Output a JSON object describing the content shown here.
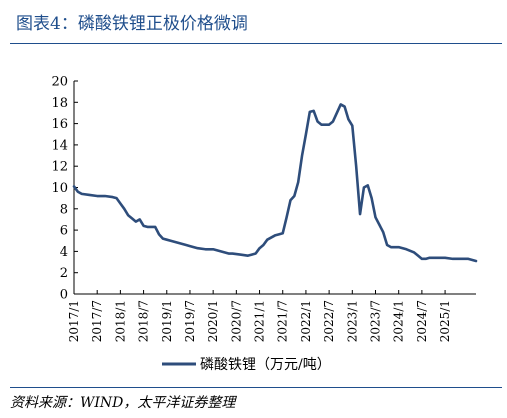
{
  "header": {
    "title": "图表4：磷酸铁锂正极价格微调"
  },
  "footer": {
    "source": "资料来源：WIND，太平洋证券整理"
  },
  "chart_data": {
    "type": "line",
    "title": "图表4：磷酸铁锂正极价格微调",
    "xlabel": "",
    "ylabel": "",
    "ylim": [
      0,
      20
    ],
    "yticks": [
      0,
      2,
      4,
      6,
      8,
      10,
      12,
      14,
      16,
      18,
      20
    ],
    "xlim": [
      "2017-01",
      "2025-09"
    ],
    "xticks": [
      "2017/1",
      "2017/7",
      "2018/1",
      "2018/7",
      "2019/1",
      "2019/7",
      "2020/1",
      "2020/7",
      "2021/1",
      "2021/7",
      "2022/1",
      "2022/7",
      "2023/1",
      "2023/7",
      "2024/1",
      "2024/7",
      "2025/1"
    ],
    "grid": false,
    "legend": "bottom",
    "line_color": "#2e4d7b",
    "series": [
      {
        "name": "磷酸铁锂（万元/吨）",
        "x": [
          "2017-01",
          "2017-02",
          "2017-03",
          "2017-05",
          "2017-07",
          "2017-09",
          "2017-11",
          "2017-12",
          "2018-01",
          "2018-02",
          "2018-03",
          "2018-04",
          "2018-05",
          "2018-06",
          "2018-07",
          "2018-08",
          "2018-09",
          "2018-10",
          "2018-11",
          "2018-12",
          "2019-01",
          "2019-02",
          "2019-04",
          "2019-06",
          "2019-07",
          "2019-09",
          "2019-11",
          "2020-01",
          "2020-03",
          "2020-05",
          "2020-06",
          "2020-08",
          "2020-10",
          "2020-11",
          "2020-12",
          "2021-01",
          "2021-02",
          "2021-03",
          "2021-04",
          "2021-05",
          "2021-06",
          "2021-07",
          "2021-08",
          "2021-09",
          "2021-10",
          "2021-11",
          "2021-12",
          "2022-01",
          "2022-02",
          "2022-03",
          "2022-04",
          "2022-05",
          "2022-06",
          "2022-07",
          "2022-08",
          "2022-09",
          "2022-10",
          "2022-11",
          "2022-12",
          "2023-01",
          "2023-02",
          "2023-03",
          "2023-04",
          "2023-05",
          "2023-06",
          "2023-07",
          "2023-08",
          "2023-09",
          "2023-10",
          "2023-11",
          "2023-12",
          "2024-01",
          "2024-03",
          "2024-05",
          "2024-06",
          "2024-07",
          "2024-08",
          "2024-09",
          "2024-11",
          "2025-01",
          "2025-03",
          "2025-05",
          "2025-07",
          "2025-09"
        ],
        "values": [
          10.1,
          9.6,
          9.4,
          9.3,
          9.2,
          9.2,
          9.1,
          9.0,
          8.5,
          8.0,
          7.4,
          7.1,
          6.8,
          7.0,
          6.4,
          6.3,
          6.3,
          6.3,
          5.6,
          5.2,
          5.1,
          5.0,
          4.8,
          4.6,
          4.5,
          4.3,
          4.2,
          4.2,
          4.0,
          3.8,
          3.8,
          3.7,
          3.6,
          3.7,
          3.8,
          4.3,
          4.6,
          5.1,
          5.3,
          5.5,
          5.6,
          5.7,
          7.2,
          8.8,
          9.2,
          10.5,
          13.0,
          15.0,
          17.1,
          17.2,
          16.2,
          15.9,
          15.9,
          15.9,
          16.2,
          17.0,
          17.8,
          17.6,
          16.4,
          15.8,
          12.0,
          7.5,
          10.0,
          10.2,
          9.0,
          7.2,
          6.5,
          5.8,
          4.6,
          4.4,
          4.4,
          4.4,
          4.2,
          3.9,
          3.6,
          3.3,
          3.3,
          3.4,
          3.4,
          3.4,
          3.3,
          3.3,
          3.3,
          3.1
        ]
      }
    ]
  }
}
